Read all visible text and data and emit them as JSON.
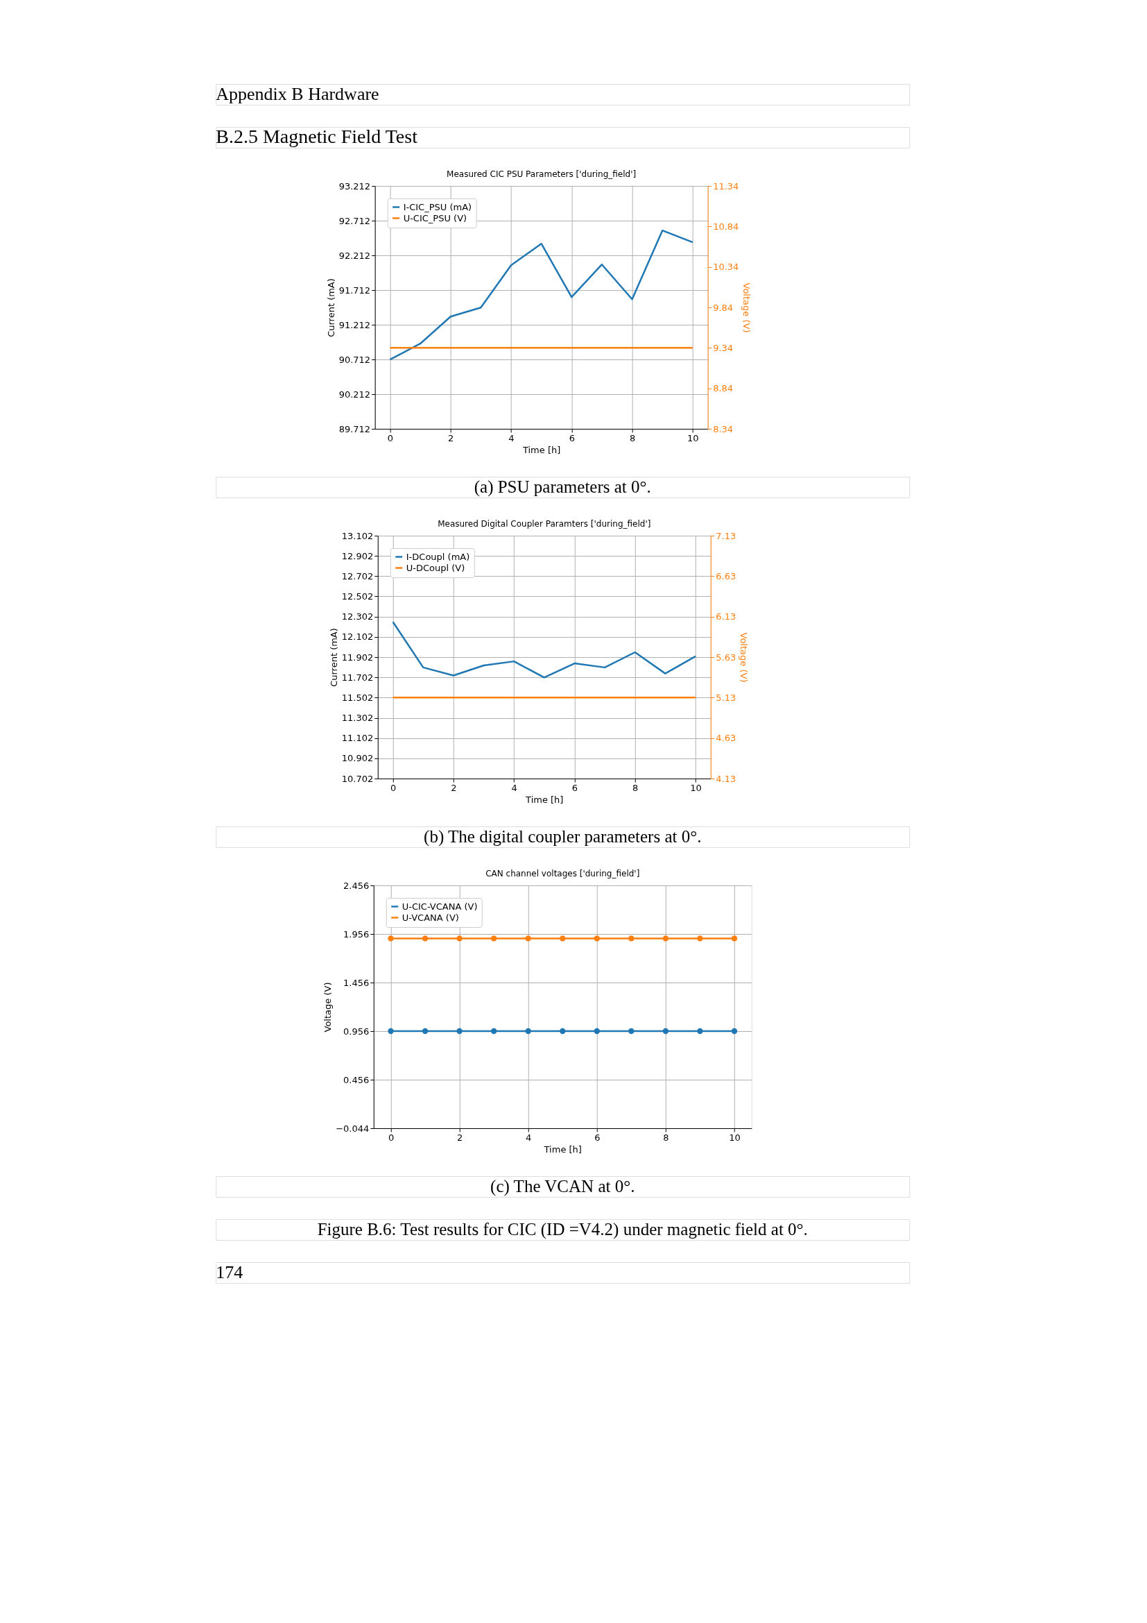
{
  "chart_data": [
    {
      "type": "line",
      "title": "Measured CIC PSU Parameters ['during_field']",
      "xlabel": "Time [h]",
      "ylabel": "Current (mA)",
      "y2label": "Voltage (V)",
      "annotations": [
        "Appendix B  Hardware",
        "B.2.5  Magnetic Field Test",
        "(a)  PSU parameters at 0°."
      ],
      "x": [
        0,
        1,
        2,
        3,
        4,
        5,
        6,
        7,
        8,
        9,
        10
      ],
      "series": [
        {
          "name": "I-CIC_PSU (mA)",
          "color": "#1f77b4",
          "values": [
            90.71,
            90.94,
            91.33,
            91.46,
            92.07,
            92.38,
            91.61,
            92.08,
            91.58,
            92.57,
            92.4
          ]
        },
        {
          "name": "U-CIC_PSU (V)",
          "color": "#ff7f0e",
          "axis": "y2",
          "values": [
            9.34,
            9.34,
            9.34,
            9.34,
            9.34,
            9.34,
            9.34,
            9.34,
            9.34,
            9.34,
            9.34
          ]
        }
      ],
      "xlim": [
        -0.5,
        10.5
      ],
      "xticks": [
        0,
        2,
        4,
        6,
        8,
        10
      ],
      "ylim": [
        89.712,
        93.212
      ],
      "yticks": [
        89.712,
        90.212,
        90.712,
        91.212,
        91.712,
        92.212,
        92.712,
        93.212
      ],
      "y2lim": [
        8.34,
        11.34
      ],
      "y2ticks": [
        8.34,
        8.84,
        9.34,
        9.84,
        10.34,
        10.84,
        11.34
      ],
      "grid": true,
      "legend": "top left",
      "line_style": "solid"
    },
    {
      "type": "line",
      "title": "Measured Digital Coupler Paramters ['during_field']",
      "xlabel": "Time [h]",
      "ylabel": "Current (mA)",
      "y2label": "Voltage (V)",
      "annotations": [
        "(b)  The digital coupler parameters at 0°."
      ],
      "x": [
        0,
        1,
        2,
        3,
        4,
        5,
        6,
        7,
        8,
        9,
        10
      ],
      "series": [
        {
          "name": "I-DCoupl (mA)",
          "color": "#1f77b4",
          "values": [
            12.25,
            11.8,
            11.72,
            11.82,
            11.86,
            11.7,
            11.84,
            11.8,
            11.95,
            11.74,
            11.91
          ]
        },
        {
          "name": "U-DCoupl (V)",
          "color": "#ff7f0e",
          "axis": "y2",
          "values": [
            5.13,
            5.13,
            5.13,
            5.13,
            5.13,
            5.13,
            5.13,
            5.13,
            5.13,
            5.13,
            5.13
          ]
        }
      ],
      "xlim": [
        -0.5,
        10.5
      ],
      "xticks": [
        0,
        2,
        4,
        6,
        8,
        10
      ],
      "ylim": [
        10.702,
        13.102
      ],
      "yticks": [
        10.702,
        10.902,
        11.102,
        11.302,
        11.502,
        11.702,
        11.902,
        12.102,
        12.302,
        12.502,
        12.702,
        12.902,
        13.102
      ],
      "y2lim": [
        4.13,
        7.13
      ],
      "y2ticks": [
        4.13,
        4.63,
        5.13,
        5.63,
        6.13,
        6.63,
        7.13
      ],
      "grid": true,
      "legend": "top left",
      "line_style": "solid"
    },
    {
      "type": "line",
      "title": "CAN channel voltages ['during_field']",
      "xlabel": "Time [h]",
      "ylabel": "Voltage (V)",
      "annotations": [
        "(c)  The VCAN at 0°.",
        "Figure B.6: Test results for CIC (ID =V4.2) under magnetic field at 0°.",
        "174"
      ],
      "x": [
        0,
        1,
        2,
        3,
        4,
        5,
        6,
        7,
        8,
        9,
        10
      ],
      "series": [
        {
          "name": "U-CIC-VCANA (V)",
          "color": "#1f77b4",
          "values": [
            0.956,
            0.956,
            0.956,
            0.956,
            0.956,
            0.956,
            0.956,
            0.956,
            0.956,
            0.956,
            0.956
          ]
        },
        {
          "name": "U-VCANA (V)",
          "color": "#ff7f0e",
          "values": [
            1.91,
            1.91,
            1.91,
            1.91,
            1.91,
            1.91,
            1.91,
            1.91,
            1.91,
            1.91,
            1.91
          ]
        }
      ],
      "xlim": [
        -0.5,
        10.5
      ],
      "xticks": [
        0,
        2,
        4,
        6,
        8,
        10
      ],
      "ylim": [
        -0.044,
        2.456
      ],
      "yticks": [
        -0.044,
        0.456,
        0.956,
        1.456,
        1.956,
        2.456
      ],
      "grid": true,
      "legend": "top left",
      "marker": "circle",
      "line_style": "solid"
    }
  ]
}
